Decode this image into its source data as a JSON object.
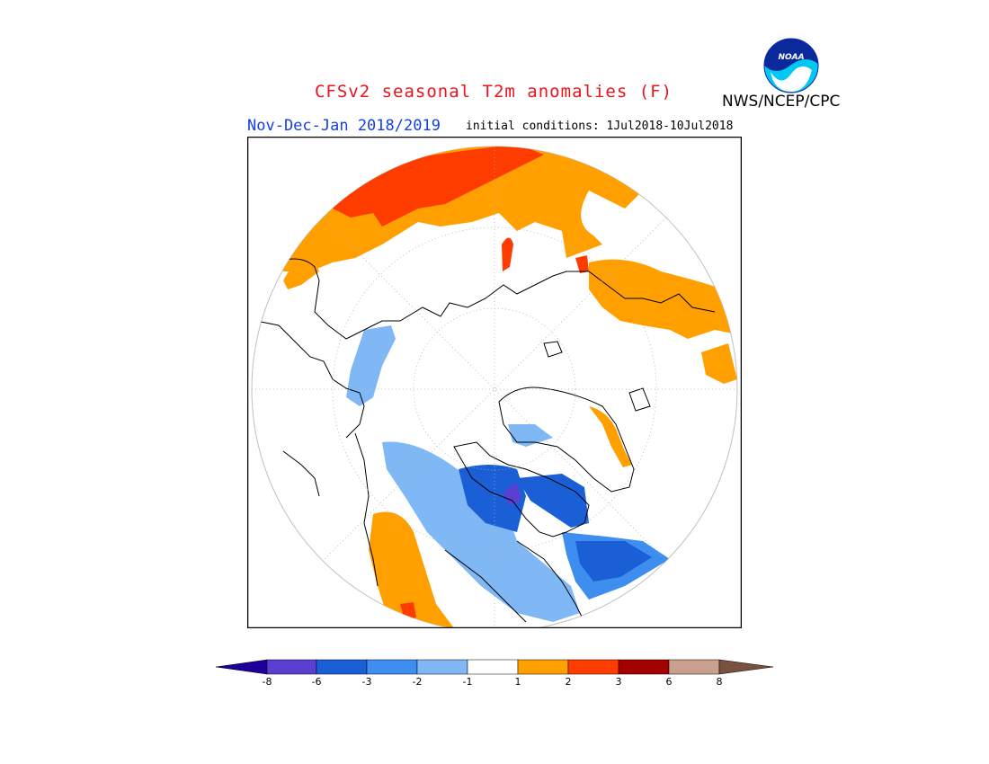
{
  "header": {
    "title": "CFSv2 seasonal T2m anomalies (F)",
    "period": "Nov-Dec-Jan 2018/2019",
    "initial_conditions": "initial conditions: 1Jul2018-10Jul2018",
    "agency": "NWS/NCEP/CPC",
    "logo_text": "NOAA"
  },
  "map": {
    "projection": "north-polar-stereographic",
    "variable": "2m temperature anomaly",
    "units": "F"
  },
  "legend": {
    "ticks": [
      "-8",
      "-6",
      "-3",
      "-2",
      "-1",
      "1",
      "2",
      "3",
      "6",
      "8"
    ],
    "colors": {
      "lt_-8": "#1c0099",
      "-8_-6": "#5a3fd1",
      "-6_-3": "#1a5fd6",
      "-3_-2": "#3e8ef0",
      "-2_-1": "#7fb8f5",
      "-1_1": "#ffffff",
      "1_2": "#ff9f00",
      "2_3": "#ff3c00",
      "3_6": "#a30000",
      "6_8": "#c9a08e",
      "gt_8": "#7a5040"
    }
  }
}
